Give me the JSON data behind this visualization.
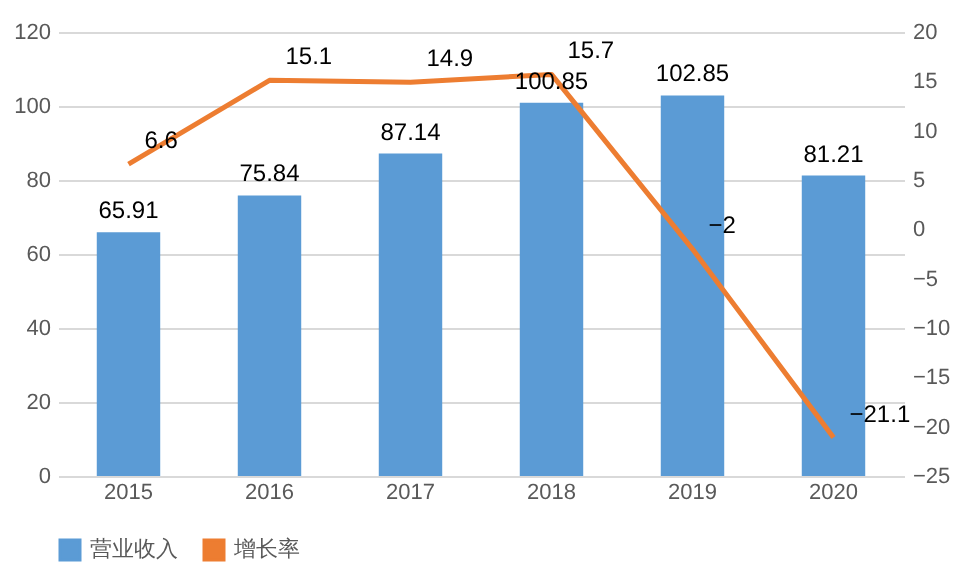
{
  "chart_data": {
    "type": "bar",
    "categories": [
      "2015",
      "2016",
      "2017",
      "2018",
      "2019",
      "2020"
    ],
    "series": [
      {
        "name": "营业收入",
        "color": "#5b9bd5",
        "values": [
          65.91,
          75.84,
          87.14,
          100.85,
          102.85,
          81.21
        ]
      },
      {
        "name": "增长率",
        "type": "line",
        "axis": "y2",
        "color": "#ed7d31",
        "values": [
          6.6,
          15.1,
          14.9,
          15.7,
          -2,
          -21.1
        ]
      }
    ],
    "ylim": [
      0,
      120
    ],
    "yticks": [
      0,
      20,
      40,
      60,
      80,
      100,
      120
    ],
    "y2lim": [
      -25,
      20
    ],
    "y2ticks": [
      -25,
      -20,
      -15,
      -10,
      -5,
      0,
      5,
      10,
      15,
      20
    ],
    "grid": "y",
    "legend": "bottom",
    "data_labels": true,
    "marker": "none",
    "line_style": "solid"
  }
}
